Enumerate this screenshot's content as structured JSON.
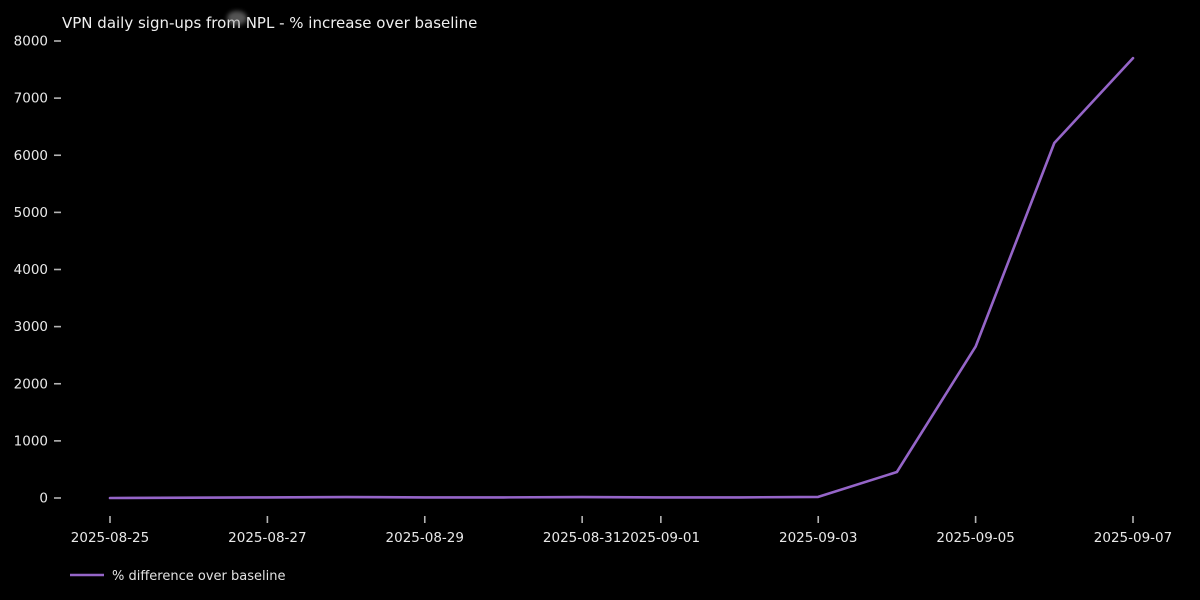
{
  "chart_data": {
    "type": "line",
    "title": "VPN daily sign-ups from NPL - % increase over baseline",
    "xlabel": "",
    "ylabel": "",
    "background_color": "#000000",
    "text_color": "#e8e8e8",
    "tick_color": "#b5b5b5",
    "grid": false,
    "ylim": [
      0,
      8000
    ],
    "y_ticks": [
      0,
      1000,
      2000,
      3000,
      4000,
      5000,
      6000,
      7000,
      8000
    ],
    "x": [
      "2025-08-25",
      "2025-08-26",
      "2025-08-27",
      "2025-08-28",
      "2025-08-29",
      "2025-08-30",
      "2025-08-31",
      "2025-09-01",
      "2025-09-02",
      "2025-09-03",
      "2025-09-04",
      "2025-09-05",
      "2025-09-06",
      "2025-09-07"
    ],
    "x_tick_labels": [
      "2025-08-25",
      "2025-08-27",
      "2025-08-29",
      "2025-08-31",
      "2025-09-01",
      "2025-09-03",
      "2025-09-05",
      "2025-09-07"
    ],
    "x_tick_day_indices": [
      0,
      2,
      4,
      6,
      7,
      9,
      11,
      13
    ],
    "series": [
      {
        "name": "% difference over baseline",
        "color": "#9565c8",
        "values": [
          0,
          5,
          10,
          15,
          10,
          10,
          15,
          10,
          10,
          20,
          455,
          2650,
          6215,
          7700
        ]
      }
    ],
    "legend": {
      "position": "lower-left",
      "entries": [
        "% difference over baseline"
      ]
    }
  }
}
